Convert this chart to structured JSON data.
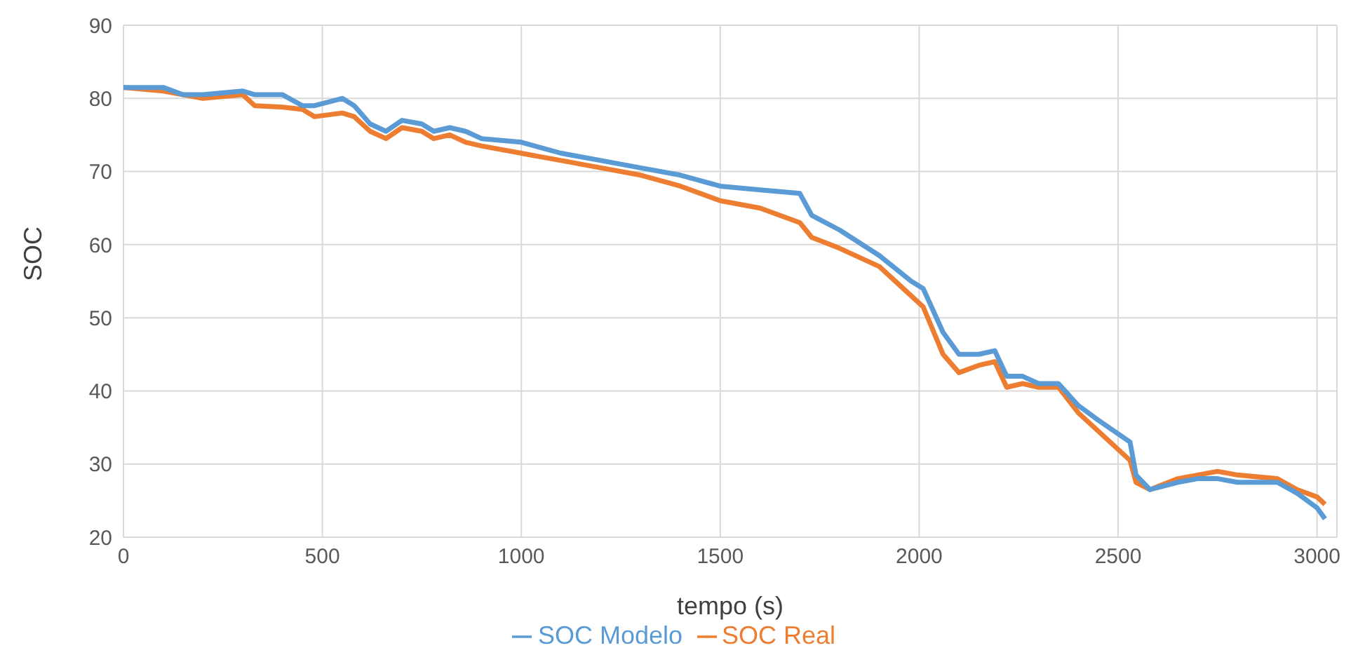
{
  "chart_data": {
    "type": "line",
    "xlabel": "tempo (s)",
    "ylabel": "SOC",
    "x": [
      0,
      100,
      150,
      200,
      300,
      330,
      400,
      450,
      480,
      550,
      580,
      620,
      660,
      700,
      750,
      780,
      820,
      860,
      900,
      1000,
      1100,
      1200,
      1300,
      1400,
      1500,
      1600,
      1700,
      1730,
      1800,
      1900,
      1980,
      2010,
      2060,
      2100,
      2150,
      2190,
      2220,
      2260,
      2300,
      2350,
      2400,
      2450,
      2530,
      2545,
      2580,
      2650,
      2700,
      2750,
      2800,
      2900,
      2950,
      3000,
      3020
    ],
    "series": [
      {
        "name": "SOC Real",
        "color": "#ed7d31",
        "values": [
          81.5,
          81,
          80.5,
          80,
          80.5,
          79,
          78.8,
          78.5,
          77.5,
          78,
          77.5,
          75.5,
          74.5,
          76,
          75.5,
          74.5,
          75,
          74,
          73.5,
          72.5,
          71.5,
          70.5,
          69.5,
          68,
          66,
          65,
          63,
          61,
          59.5,
          57,
          53,
          51.5,
          45,
          42.5,
          43.5,
          44,
          40.5,
          41,
          40.5,
          40.5,
          37,
          34.5,
          30.5,
          27.5,
          26.5,
          28,
          28.5,
          29,
          28.5,
          28,
          26.5,
          25.5,
          24.5
        ]
      },
      {
        "name": "SOC Modelo",
        "color": "#5b9bd5",
        "values": [
          81.5,
          81.5,
          80.5,
          80.5,
          81,
          80.5,
          80.5,
          79,
          79,
          80,
          79,
          76.5,
          75.5,
          77,
          76.5,
          75.5,
          76,
          75.5,
          74.5,
          74,
          72.5,
          71.5,
          70.5,
          69.5,
          68,
          67.5,
          67,
          64,
          62,
          58.5,
          55,
          54,
          48,
          45,
          45,
          45.5,
          42,
          42,
          41,
          41,
          38,
          36,
          33,
          28.5,
          26.5,
          27.5,
          28,
          28,
          27.5,
          27.5,
          26,
          24,
          22.5
        ]
      }
    ],
    "xlim": [
      0,
      3050
    ],
    "xticks": [
      0,
      500,
      1000,
      1500,
      2000,
      2500,
      3000
    ],
    "ylim": [
      20,
      90
    ],
    "yticks": [
      20,
      30,
      40,
      50,
      60,
      70,
      80,
      90
    ],
    "grid": true,
    "legend": "bottom",
    "marker": "none",
    "line_style": "solid"
  }
}
